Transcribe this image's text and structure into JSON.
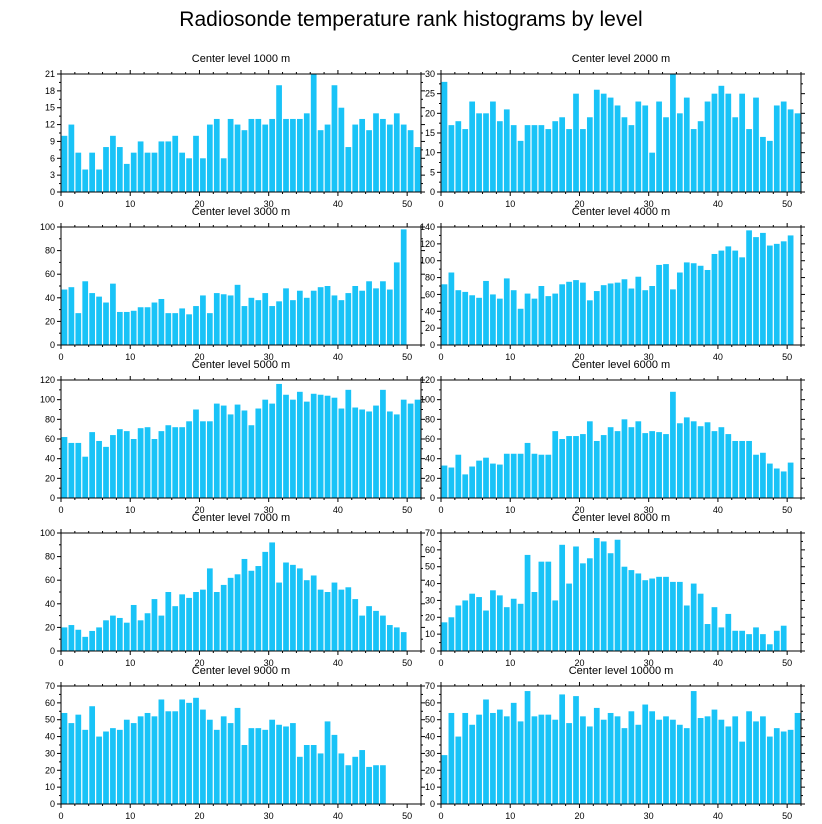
{
  "title": "Radiosonde temperature rank histograms by level",
  "colors": {
    "bar": "#19c3f7",
    "axis": "#000000",
    "background": "#ffffff"
  },
  "chart_data": [
    {
      "type": "bar",
      "title": "Center level 1000 m",
      "xlim": [
        0,
        52
      ],
      "xticks": [
        0,
        10,
        20,
        30,
        40,
        50
      ],
      "ylim": [
        0,
        21
      ],
      "yticks": [
        0,
        3,
        6,
        9,
        12,
        15,
        18,
        21
      ],
      "xlabel": "",
      "ylabel": "",
      "values": [
        10,
        12,
        7,
        4,
        7,
        4,
        8,
        10,
        8,
        5,
        7,
        9,
        7,
        7,
        9,
        9,
        10,
        7,
        6,
        10,
        6,
        12,
        13,
        6,
        13,
        12,
        11,
        13,
        13,
        12,
        13,
        19,
        13,
        13,
        13,
        14,
        21,
        11,
        12,
        19,
        15,
        8,
        12,
        13,
        11,
        14,
        13,
        12,
        14,
        12,
        11,
        8
      ]
    },
    {
      "type": "bar",
      "title": "Center level 2000 m",
      "xlim": [
        0,
        52
      ],
      "xticks": [
        0,
        10,
        20,
        30,
        40,
        50
      ],
      "ylim": [
        0,
        30
      ],
      "yticks": [
        0,
        5,
        10,
        15,
        20,
        25,
        30
      ],
      "xlabel": "",
      "ylabel": "",
      "values": [
        28,
        17,
        18,
        16,
        23,
        20,
        20,
        23,
        18,
        21,
        17,
        13,
        17,
        17,
        17,
        16,
        18,
        19,
        16,
        25,
        16,
        19,
        26,
        25,
        24,
        22,
        19,
        17,
        23,
        22,
        10,
        23,
        19,
        30,
        20,
        24,
        16,
        18,
        23,
        25,
        27,
        25,
        19,
        25,
        16,
        24,
        14,
        13,
        22,
        23,
        21,
        20
      ]
    },
    {
      "type": "bar",
      "title": "Center level 3000 m",
      "xlim": [
        0,
        52
      ],
      "xticks": [
        0,
        10,
        20,
        30,
        40,
        50
      ],
      "ylim": [
        0,
        100
      ],
      "yticks": [
        0,
        20,
        40,
        60,
        80,
        100
      ],
      "xlabel": "",
      "ylabel": "",
      "values": [
        47,
        49,
        27,
        54,
        44,
        41,
        36,
        52,
        28,
        28,
        29,
        32,
        32,
        36,
        39,
        27,
        27,
        31,
        26,
        33,
        42,
        27,
        44,
        43,
        42,
        51,
        33,
        40,
        38,
        44,
        33,
        37,
        48,
        38,
        46,
        40,
        46,
        49,
        50,
        42,
        38,
        44,
        50,
        46,
        54,
        48,
        54,
        47,
        70,
        98,
        0,
        0
      ]
    },
    {
      "type": "bar",
      "title": "Center level 4000 m",
      "xlim": [
        0,
        52
      ],
      "xticks": [
        0,
        10,
        20,
        30,
        40,
        50
      ],
      "ylim": [
        0,
        140
      ],
      "yticks": [
        0,
        20,
        40,
        60,
        80,
        100,
        120,
        140
      ],
      "xlabel": "",
      "ylabel": "",
      "values": [
        72,
        86,
        65,
        63,
        59,
        56,
        76,
        60,
        55,
        79,
        65,
        43,
        61,
        55,
        70,
        58,
        61,
        72,
        75,
        77,
        74,
        53,
        64,
        71,
        73,
        74,
        78,
        67,
        81,
        65,
        70,
        95,
        96,
        66,
        86,
        98,
        97,
        94,
        89,
        108,
        112,
        117,
        112,
        104,
        136,
        128,
        133,
        118,
        120,
        123,
        130,
        0
      ]
    },
    {
      "type": "bar",
      "title": "Center level 5000 m",
      "xlim": [
        0,
        52
      ],
      "xticks": [
        0,
        10,
        20,
        30,
        40,
        50
      ],
      "ylim": [
        0,
        120
      ],
      "yticks": [
        0,
        20,
        40,
        60,
        80,
        100,
        120
      ],
      "xlabel": "",
      "ylabel": "",
      "values": [
        62,
        56,
        56,
        42,
        67,
        58,
        52,
        64,
        70,
        68,
        60,
        71,
        72,
        60,
        68,
        74,
        72,
        72,
        78,
        90,
        78,
        78,
        96,
        94,
        85,
        95,
        89,
        74,
        91,
        100,
        96,
        116,
        105,
        100,
        108,
        98,
        106,
        105,
        104,
        102,
        91,
        110,
        92,
        90,
        88,
        94,
        110,
        88,
        85,
        100,
        96,
        100
      ]
    },
    {
      "type": "bar",
      "title": "Center level 6000 m",
      "xlim": [
        0,
        52
      ],
      "xticks": [
        0,
        10,
        20,
        30,
        40,
        50
      ],
      "ylim": [
        0,
        120
      ],
      "yticks": [
        0,
        20,
        40,
        60,
        80,
        100,
        120
      ],
      "xlabel": "",
      "ylabel": "",
      "values": [
        33,
        31,
        44,
        24,
        32,
        38,
        41,
        35,
        34,
        45,
        45,
        45,
        56,
        45,
        44,
        44,
        68,
        60,
        63,
        63,
        65,
        78,
        58,
        64,
        72,
        68,
        80,
        72,
        78,
        66,
        68,
        67,
        65,
        108,
        76,
        82,
        78,
        73,
        77,
        68,
        72,
        65,
        58,
        58,
        58,
        44,
        46,
        35,
        30,
        27,
        36,
        0
      ]
    },
    {
      "type": "bar",
      "title": "Center level 7000 m",
      "xlim": [
        0,
        52
      ],
      "xticks": [
        0,
        10,
        20,
        30,
        40,
        50
      ],
      "ylim": [
        0,
        100
      ],
      "yticks": [
        0,
        20,
        40,
        60,
        80,
        100
      ],
      "xlabel": "",
      "ylabel": "",
      "values": [
        20,
        22,
        18,
        12,
        17,
        20,
        26,
        30,
        28,
        24,
        39,
        26,
        32,
        44,
        30,
        50,
        38,
        48,
        45,
        50,
        52,
        70,
        50,
        56,
        62,
        65,
        78,
        68,
        72,
        84,
        92,
        58,
        75,
        73,
        70,
        60,
        64,
        52,
        50,
        58,
        52,
        54,
        44,
        30,
        38,
        34,
        30,
        22,
        20,
        16,
        0,
        0
      ]
    },
    {
      "type": "bar",
      "title": "Center level 8000 m",
      "xlim": [
        0,
        52
      ],
      "xticks": [
        0,
        10,
        20,
        30,
        40,
        50
      ],
      "ylim": [
        0,
        70
      ],
      "yticks": [
        0,
        10,
        20,
        30,
        40,
        50,
        60,
        70
      ],
      "xlabel": "",
      "ylabel": "",
      "values": [
        17,
        20,
        27,
        30,
        34,
        32,
        24,
        36,
        33,
        26,
        31,
        28,
        57,
        35,
        53,
        53,
        30,
        63,
        40,
        62,
        52,
        55,
        67,
        65,
        58,
        66,
        50,
        48,
        46,
        42,
        43,
        44,
        44,
        41,
        41,
        27,
        40,
        34,
        16,
        26,
        14,
        22,
        12,
        12,
        10,
        14,
        10,
        4,
        12,
        15,
        0,
        0
      ]
    },
    {
      "type": "bar",
      "title": "Center level 9000 m",
      "xlim": [
        0,
        52
      ],
      "xticks": [
        0,
        10,
        20,
        30,
        40,
        50
      ],
      "ylim": [
        0,
        70
      ],
      "yticks": [
        0,
        10,
        20,
        30,
        40,
        50,
        60,
        70
      ],
      "xlabel": "",
      "ylabel": "",
      "values": [
        54,
        48,
        53,
        44,
        58,
        40,
        43,
        45,
        44,
        50,
        48,
        52,
        54,
        52,
        62,
        55,
        55,
        62,
        60,
        63,
        56,
        50,
        44,
        52,
        48,
        57,
        35,
        45,
        45,
        44,
        50,
        47,
        46,
        48,
        28,
        35,
        35,
        30,
        49,
        41,
        30,
        23,
        28,
        32,
        22,
        23,
        23,
        0,
        0,
        0,
        0,
        0
      ]
    },
    {
      "type": "bar",
      "title": "Center level 10000 m",
      "xlim": [
        0,
        52
      ],
      "xticks": [
        0,
        10,
        20,
        30,
        40,
        50
      ],
      "ylim": [
        0,
        70
      ],
      "yticks": [
        0,
        10,
        20,
        30,
        40,
        50,
        60,
        70
      ],
      "xlabel": "",
      "ylabel": "",
      "values": [
        29,
        54,
        40,
        54,
        47,
        53,
        62,
        54,
        56,
        52,
        60,
        49,
        67,
        52,
        53,
        53,
        50,
        65,
        48,
        64,
        52,
        46,
        57,
        50,
        54,
        52,
        45,
        55,
        47,
        59,
        55,
        50,
        52,
        50,
        47,
        45,
        67,
        51,
        52,
        56,
        50,
        46,
        52,
        37,
        55,
        49,
        52,
        40,
        45,
        43,
        44,
        54
      ]
    }
  ]
}
